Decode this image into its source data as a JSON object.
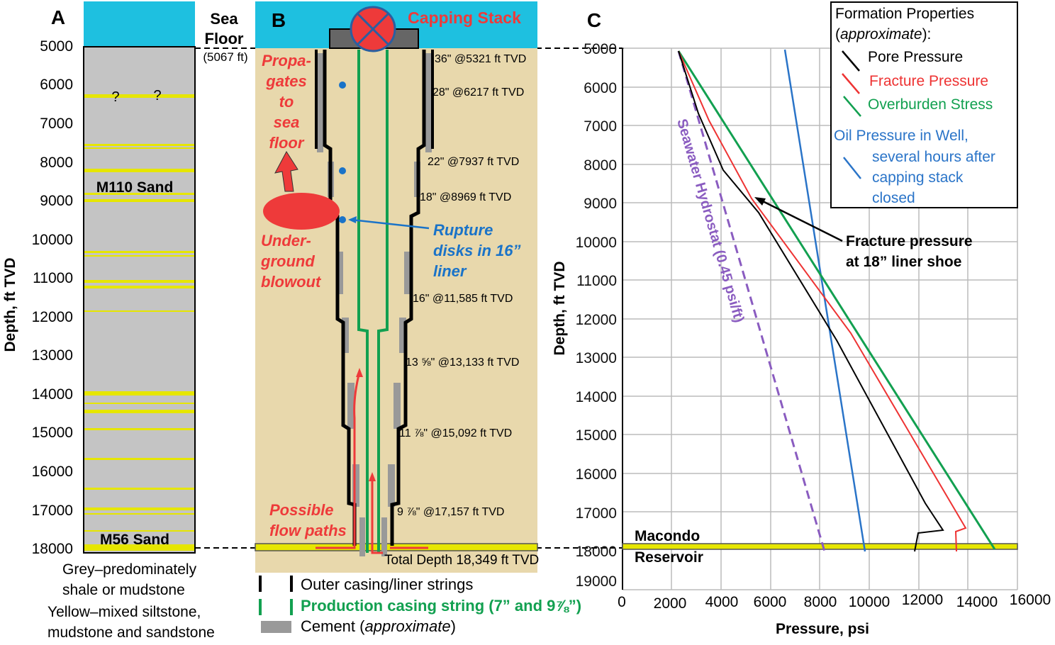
{
  "panelA": {
    "letter": "A",
    "sea_floor": "Sea Floor",
    "sea_floor_l1": "Sea",
    "sea_floor_l2": "Floor",
    "sea_floor_depth": "(5067 ft)",
    "ylabel": "Depth, ft TVD",
    "ticks": [
      "5000",
      "6000",
      "7000",
      "8000",
      "9000",
      "10000",
      "11000",
      "12000",
      "13000",
      "14000",
      "15000",
      "16000",
      "17000",
      "18000"
    ],
    "question_marks": [
      "?",
      "?"
    ],
    "m110": "M110 Sand",
    "m56": "M56 Sand",
    "legend": [
      "Grey–predominately",
      "shale or mudstone",
      "Yellow–mixed siltstone,",
      "mudstone and sandstone"
    ]
  },
  "panelB": {
    "letter": "B",
    "capping_stack": "Capping Stack",
    "propagates": [
      "Propa-",
      "gates",
      "to",
      "sea",
      "floor"
    ],
    "underground": [
      "Under-",
      "ground",
      "blowout"
    ],
    "rupture": [
      "Rupture",
      "disks in 16”",
      "liner"
    ],
    "possible": [
      "Possible",
      "flow paths"
    ],
    "casings": [
      "36\" @5321 ft TVD",
      "28\" @6217 ft TVD",
      "22\" @7937 ft TVD",
      "18\" @8969 ft TVD",
      "16\" @11,585 ft TVD",
      "13 ⅝\" @13,133 ft TVD",
      "11 ⅞\" @15,092 ft TVD",
      "9 ⅞\" @17,157 ft TVD"
    ],
    "total_depth": "Total Depth 18,349 ft TVD",
    "legend": {
      "outer": "Outer casing/liner strings",
      "production": "Production casing string (7” and 9⅞”)",
      "cement": "Cement (",
      "cement_italic": "approximate",
      "cement_end": ")"
    }
  },
  "panelC": {
    "letter": "C",
    "ylabel": "Depth, ft TVD",
    "xlabel": "Pressure, psi",
    "yticks": [
      "5000",
      "6000",
      "7000",
      "8000",
      "9000",
      "10000",
      "11000",
      "12000",
      "13000",
      "14000",
      "15000",
      "16000",
      "17000",
      "18000",
      "19000"
    ],
    "xticks": [
      "0",
      "2000",
      "4000",
      "6000",
      "8000",
      "10000",
      "12000",
      "14000",
      "16000"
    ],
    "hydrostat": "Seawater Hydrostat (0.45 psi/ft)",
    "fracture_annot": [
      "Fracture pressure",
      "at 18” liner shoe"
    ],
    "macondo": [
      "Macondo",
      "Reservoir"
    ],
    "legend": {
      "title": "Formation Properties",
      "subtitle_open": "(",
      "subtitle_italic": "approximate",
      "subtitle_close": "):",
      "pore": "Pore Pressure",
      "fracture": "Fracture Pressure",
      "overburden": "Overburden Stress",
      "oil": [
        "Oil Pressure in Well,",
        "several hours after",
        "capping stack",
        "closed"
      ]
    },
    "colors": {
      "pore": "#000000",
      "fracture": "#ee3333",
      "overburden": "#12a050",
      "oil": "#2a74c8",
      "hydrostat": "#8a5cc0"
    }
  }
}
